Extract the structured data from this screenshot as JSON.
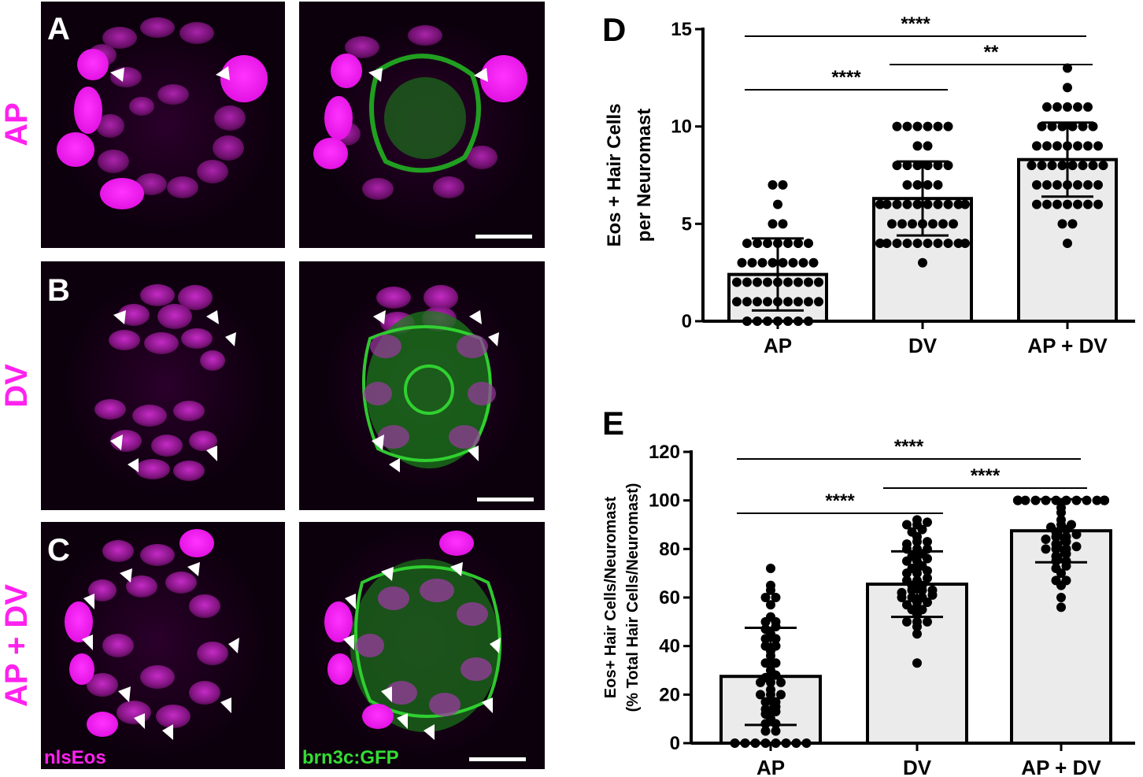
{
  "figure": {
    "panel_labels": [
      "A",
      "B",
      "C"
    ],
    "row_labels": [
      "AP",
      "DV",
      "AP + DV"
    ],
    "channel_labels": {
      "magenta": "nlsEos",
      "green": "brn3c:GFP"
    },
    "colors": {
      "magenta": "#ff22ee",
      "green": "#33dd33",
      "black_bg": "#0c000c",
      "bar_fill": "#ebebeb"
    }
  },
  "chart_data": [
    {
      "panel": "D",
      "type": "bar",
      "categories": [
        "AP",
        "DV",
        "AP + DV"
      ],
      "values": [
        2.4,
        6.3,
        8.3
      ],
      "sd": [
        1.85,
        1.9,
        1.9
      ],
      "ylabel_lines": [
        "Eos + Hair Cells",
        "per Neuromast"
      ],
      "xlabel": "",
      "ylim": [
        0,
        15
      ],
      "yticks": [
        0,
        5,
        10,
        15
      ],
      "ytick_labels": [
        "0",
        "5",
        "10",
        "15"
      ],
      "points": [
        [
          0,
          0,
          0,
          0,
          0,
          0,
          0,
          1,
          1,
          1,
          1,
          1,
          1,
          1,
          1,
          1,
          2,
          2,
          2,
          2,
          2,
          2,
          2,
          2,
          2,
          3,
          3,
          3,
          3,
          3,
          3,
          3,
          3,
          4,
          4,
          4,
          4,
          4,
          4,
          4,
          5,
          5,
          6,
          7,
          7
        ],
        [
          3,
          4,
          4,
          4,
          4,
          4,
          4,
          4,
          4,
          4,
          4,
          5,
          5,
          5,
          5,
          5,
          5,
          5,
          6,
          6,
          6,
          6,
          6,
          6,
          6,
          6,
          6,
          6,
          7,
          7,
          7,
          7,
          8,
          8,
          8,
          8,
          8,
          8,
          9,
          9,
          10,
          10,
          10,
          10,
          10,
          10
        ],
        [
          4,
          5,
          5,
          6,
          6,
          6,
          6,
          6,
          6,
          6,
          7,
          7,
          7,
          7,
          7,
          7,
          7,
          8,
          8,
          8,
          8,
          8,
          8,
          8,
          8,
          9,
          9,
          9,
          9,
          9,
          9,
          9,
          10,
          10,
          10,
          10,
          10,
          10,
          11,
          11,
          11,
          11,
          11,
          12,
          13
        ]
      ],
      "significance": [
        {
          "from": 0,
          "to": 1,
          "label": "****"
        },
        {
          "from": 1,
          "to": 2,
          "label": "**"
        },
        {
          "from": 0,
          "to": 2,
          "label": "****"
        }
      ]
    },
    {
      "panel": "E",
      "type": "bar",
      "categories": [
        "AP",
        "DV",
        "AP + DV"
      ],
      "values": [
        27.5,
        65.5,
        87.5
      ],
      "sd": [
        20,
        13.5,
        13
      ],
      "ylabel_lines": [
        "Eos+ Hair Cells/Neuromast",
        "(% Total Hair Cells/Neuromast)"
      ],
      "xlabel": "",
      "ylim": [
        0,
        120
      ],
      "yticks": [
        0,
        20,
        40,
        60,
        80,
        100,
        120
      ],
      "ytick_labels": [
        "0",
        "20",
        "40",
        "60",
        "80",
        "100",
        "120"
      ],
      "points": [
        [
          0,
          0,
          0,
          0,
          0,
          0,
          0,
          0,
          5,
          5,
          8,
          8,
          10,
          12,
          13,
          14,
          15,
          17,
          17,
          20,
          20,
          20,
          22,
          25,
          25,
          25,
          27,
          28,
          30,
          33,
          33,
          36,
          38,
          40,
          40,
          43,
          43,
          45,
          47,
          48,
          50,
          50,
          52,
          57,
          60,
          60,
          63,
          65,
          72
        ],
        [
          33,
          45,
          48,
          50,
          50,
          50,
          53,
          55,
          55,
          57,
          58,
          58,
          60,
          60,
          60,
          61,
          62,
          63,
          63,
          63,
          65,
          65,
          67,
          67,
          68,
          70,
          70,
          71,
          72,
          73,
          75,
          75,
          76,
          77,
          78,
          80,
          80,
          80,
          82,
          83,
          83,
          85,
          87,
          88,
          90,
          90,
          91,
          92
        ],
        [
          56,
          60,
          65,
          67,
          67,
          70,
          72,
          73,
          75,
          75,
          77,
          78,
          80,
          80,
          80,
          81,
          82,
          83,
          84,
          85,
          85,
          86,
          87,
          88,
          89,
          90,
          90,
          92,
          95,
          97,
          100,
          100,
          100,
          100,
          100,
          100,
          100,
          100,
          100,
          100,
          100,
          100,
          100,
          100,
          100,
          100,
          100,
          100
        ]
      ],
      "significance": [
        {
          "from": 0,
          "to": 1,
          "label": "****"
        },
        {
          "from": 1,
          "to": 2,
          "label": "****"
        },
        {
          "from": 0,
          "to": 2,
          "label": "****"
        }
      ]
    }
  ]
}
